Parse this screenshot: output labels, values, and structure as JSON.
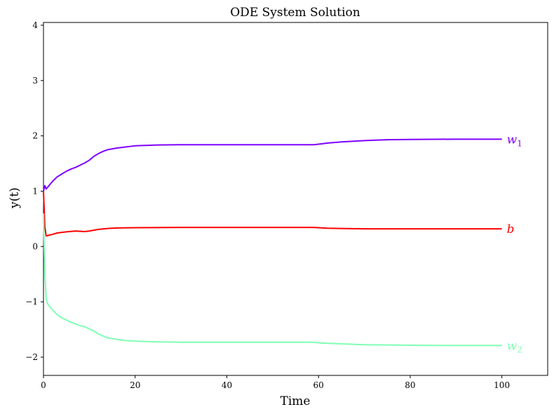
{
  "chart_data": {
    "type": "line",
    "title": "ODE System Solution",
    "xlabel": "Time",
    "ylabel": "y(t)",
    "xlim": [
      0,
      110
    ],
    "ylim": [
      -2.33,
      4.05
    ],
    "xticks": [
      0,
      20,
      40,
      60,
      80,
      100
    ],
    "yticks": [
      -2,
      -1,
      0,
      1,
      2,
      3,
      4
    ],
    "xtick_labels": [
      "0",
      "20",
      "40",
      "60",
      "80",
      "100"
    ],
    "ytick_labels": [
      "−2",
      "−1",
      "0",
      "1",
      "2",
      "3",
      "4"
    ],
    "grid": false,
    "series": [
      {
        "name": "w1",
        "label_main": "w",
        "label_sub": "1",
        "color": "#8000ff",
        "points": [
          [
            0,
            1.0
          ],
          [
            0.3,
            1.1
          ],
          [
            0.6,
            1.04
          ],
          [
            1,
            1.08
          ],
          [
            2,
            1.18
          ],
          [
            3,
            1.26
          ],
          [
            4,
            1.31
          ],
          [
            5,
            1.36
          ],
          [
            6,
            1.4
          ],
          [
            7,
            1.43
          ],
          [
            8,
            1.47
          ],
          [
            9,
            1.51
          ],
          [
            10,
            1.56
          ],
          [
            11,
            1.63
          ],
          [
            12,
            1.68
          ],
          [
            13,
            1.72
          ],
          [
            14,
            1.75
          ],
          [
            16,
            1.78
          ],
          [
            18,
            1.8
          ],
          [
            20,
            1.82
          ],
          [
            25,
            1.835
          ],
          [
            30,
            1.84
          ],
          [
            40,
            1.84
          ],
          [
            50,
            1.84
          ],
          [
            59,
            1.84
          ],
          [
            60,
            1.85
          ],
          [
            62,
            1.87
          ],
          [
            65,
            1.89
          ],
          [
            70,
            1.915
          ],
          [
            75,
            1.93
          ],
          [
            80,
            1.935
          ],
          [
            90,
            1.94
          ],
          [
            100,
            1.94
          ]
        ]
      },
      {
        "name": "b",
        "label_main": "b",
        "label_sub": "",
        "color": "#ff0000",
        "points": [
          [
            0,
            1.0
          ],
          [
            0.3,
            0.35
          ],
          [
            0.6,
            0.19
          ],
          [
            1,
            0.2
          ],
          [
            2,
            0.22
          ],
          [
            3,
            0.245
          ],
          [
            5,
            0.265
          ],
          [
            7,
            0.28
          ],
          [
            8,
            0.275
          ],
          [
            9,
            0.27
          ],
          [
            10,
            0.28
          ],
          [
            12,
            0.31
          ],
          [
            14,
            0.325
          ],
          [
            16,
            0.335
          ],
          [
            20,
            0.34
          ],
          [
            30,
            0.345
          ],
          [
            40,
            0.345
          ],
          [
            50,
            0.345
          ],
          [
            59,
            0.345
          ],
          [
            60,
            0.34
          ],
          [
            62,
            0.33
          ],
          [
            65,
            0.325
          ],
          [
            70,
            0.32
          ],
          [
            80,
            0.32
          ],
          [
            90,
            0.32
          ],
          [
            100,
            0.32
          ]
        ]
      },
      {
        "name": "w2",
        "label_main": "w",
        "label_sub": "2",
        "color": "#80ffb4",
        "points": [
          [
            0,
            0.6
          ],
          [
            0.3,
            -0.5
          ],
          [
            0.6,
            -0.95
          ],
          [
            1,
            -1.05
          ],
          [
            2,
            -1.15
          ],
          [
            3,
            -1.23
          ],
          [
            4,
            -1.29
          ],
          [
            5,
            -1.33
          ],
          [
            6,
            -1.37
          ],
          [
            7,
            -1.4
          ],
          [
            8,
            -1.43
          ],
          [
            9,
            -1.45
          ],
          [
            10,
            -1.49
          ],
          [
            11,
            -1.53
          ],
          [
            12,
            -1.58
          ],
          [
            13,
            -1.62
          ],
          [
            14,
            -1.65
          ],
          [
            16,
            -1.68
          ],
          [
            18,
            -1.7
          ],
          [
            20,
            -1.71
          ],
          [
            25,
            -1.725
          ],
          [
            30,
            -1.73
          ],
          [
            40,
            -1.73
          ],
          [
            50,
            -1.73
          ],
          [
            59,
            -1.73
          ],
          [
            60,
            -1.74
          ],
          [
            62,
            -1.75
          ],
          [
            65,
            -1.76
          ],
          [
            70,
            -1.775
          ],
          [
            75,
            -1.78
          ],
          [
            80,
            -1.785
          ],
          [
            90,
            -1.79
          ],
          [
            100,
            -1.79
          ]
        ]
      }
    ]
  }
}
